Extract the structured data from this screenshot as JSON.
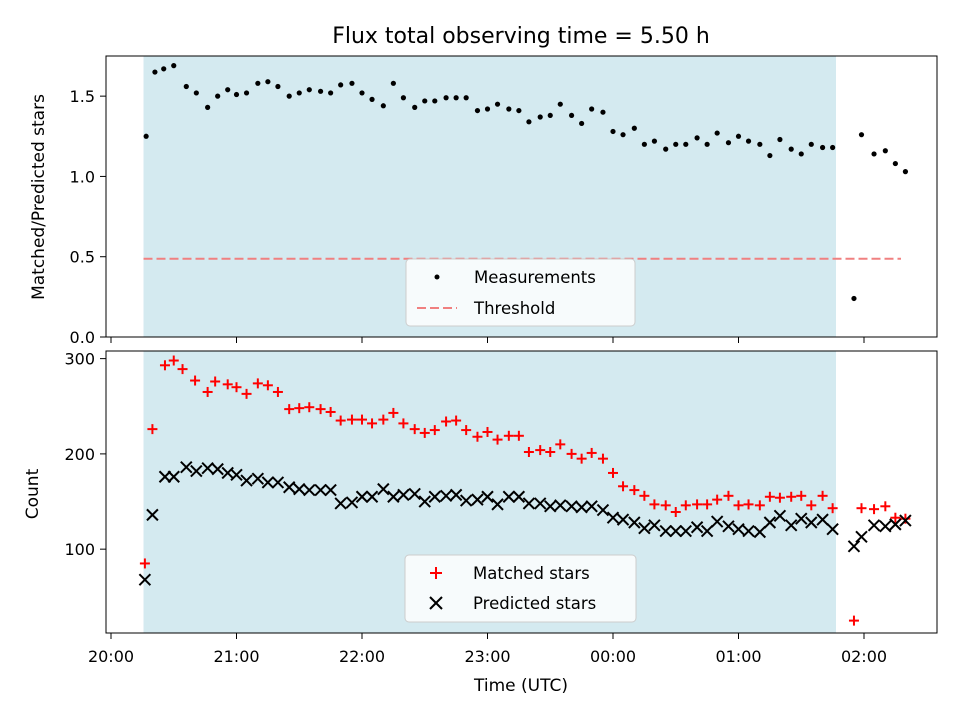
{
  "figure": {
    "title": "Flux total observing time = 5.50 h",
    "xlabel": "Time (UTC)",
    "x_tick_labels": [
      "20:00",
      "21:00",
      "22:00",
      "23:00",
      "00:00",
      "01:00",
      "02:00"
    ],
    "shade_color": "#d4eaf0"
  },
  "chart_data": [
    {
      "type": "scatter",
      "ylabel": "Matched/Predicted stars",
      "ylim": [
        0,
        1.75
      ],
      "yticks": [
        0.0,
        0.5,
        1.0,
        1.5
      ],
      "ytick_labels": [
        "0.0",
        "0.5",
        "1.0",
        "1.5"
      ],
      "xlim": [
        "19:57",
        "02:35"
      ],
      "x_unit": "hours since 20:00 UTC",
      "observing_window": [
        "20:15",
        "01:45"
      ],
      "legend_position": "lower center",
      "threshold": {
        "name": "Threshold",
        "value": 0.5,
        "color": "#f08080",
        "style": "dashed",
        "x_range": [
          "20:15",
          "02:15"
        ]
      },
      "series": [
        {
          "name": "Measurements",
          "color": "#000000",
          "marker": "dot",
          "x": [
            0.28,
            0.35,
            0.42,
            0.5,
            0.6,
            0.68,
            0.77,
            0.85,
            0.93,
            1.0,
            1.08,
            1.17,
            1.25,
            1.33,
            1.42,
            1.5,
            1.58,
            1.67,
            1.75,
            1.83,
            1.92,
            2.0,
            2.08,
            2.17,
            2.25,
            2.33,
            2.42,
            2.5,
            2.58,
            2.67,
            2.75,
            2.83,
            2.92,
            3.0,
            3.08,
            3.17,
            3.25,
            3.33,
            3.42,
            3.5,
            3.58,
            3.67,
            3.75,
            3.83,
            3.92,
            4.0,
            4.08,
            4.17,
            4.25,
            4.33,
            4.42,
            4.5,
            4.58,
            4.67,
            4.75,
            4.83,
            4.92,
            5.0,
            5.08,
            5.17,
            5.25,
            5.33,
            5.42,
            5.5,
            5.58,
            5.67,
            5.75,
            5.92,
            5.98,
            6.08,
            6.17,
            6.25,
            6.33
          ],
          "y": [
            1.25,
            1.65,
            1.67,
            1.69,
            1.56,
            1.52,
            1.43,
            1.5,
            1.54,
            1.51,
            1.52,
            1.58,
            1.59,
            1.56,
            1.5,
            1.52,
            1.54,
            1.53,
            1.52,
            1.57,
            1.58,
            1.52,
            1.48,
            1.44,
            1.58,
            1.49,
            1.43,
            1.47,
            1.47,
            1.49,
            1.49,
            1.49,
            1.41,
            1.42,
            1.45,
            1.42,
            1.41,
            1.34,
            1.37,
            1.38,
            1.45,
            1.38,
            1.33,
            1.42,
            1.4,
            1.28,
            1.26,
            1.3,
            1.2,
            1.22,
            1.17,
            1.2,
            1.2,
            1.24,
            1.2,
            1.27,
            1.21,
            1.25,
            1.22,
            1.2,
            1.13,
            1.23,
            1.17,
            1.14,
            1.2,
            1.18,
            1.18,
            0.24,
            1.26,
            1.14,
            1.16,
            1.08,
            1.03
          ]
        }
      ]
    },
    {
      "type": "scatter",
      "ylabel": "Count",
      "ylim": [
        12,
        308
      ],
      "yticks": [
        100,
        200,
        300
      ],
      "ytick_labels": [
        "100",
        "200",
        "300"
      ],
      "xlim": [
        "19:57",
        "02:35"
      ],
      "x_unit": "hours since 20:00 UTC",
      "observing_window": [
        "20:15",
        "01:45"
      ],
      "legend_position": "lower center",
      "series": [
        {
          "name": "Matched stars",
          "color": "#ff0000",
          "marker": "plus",
          "x": [
            0.27,
            0.33,
            0.43,
            0.5,
            0.57,
            0.67,
            0.77,
            0.83,
            0.93,
            1.0,
            1.08,
            1.17,
            1.25,
            1.33,
            1.42,
            1.5,
            1.58,
            1.67,
            1.75,
            1.83,
            1.92,
            2.0,
            2.08,
            2.17,
            2.25,
            2.33,
            2.42,
            2.5,
            2.58,
            2.67,
            2.75,
            2.83,
            2.92,
            3.0,
            3.08,
            3.17,
            3.25,
            3.33,
            3.42,
            3.5,
            3.58,
            3.67,
            3.75,
            3.83,
            3.92,
            4.0,
            4.08,
            4.17,
            4.25,
            4.33,
            4.42,
            4.5,
            4.58,
            4.67,
            4.75,
            4.83,
            4.92,
            5.0,
            5.08,
            5.17,
            5.25,
            5.33,
            5.42,
            5.5,
            5.58,
            5.67,
            5.75,
            5.92,
            5.98,
            6.08,
            6.17,
            6.25,
            6.33
          ],
          "y": [
            85,
            226,
            293,
            298,
            289,
            277,
            265,
            276,
            273,
            270,
            263,
            274,
            272,
            265,
            247,
            248,
            249,
            247,
            244,
            235,
            236,
            236,
            232,
            236,
            243,
            232,
            226,
            222,
            225,
            234,
            235,
            225,
            218,
            223,
            215,
            219,
            219,
            202,
            204,
            202,
            210,
            200,
            195,
            201,
            195,
            180,
            166,
            162,
            156,
            147,
            146,
            139,
            146,
            147,
            147,
            152,
            156,
            146,
            147,
            146,
            155,
            154,
            155,
            156,
            146,
            156,
            143,
            25,
            143,
            142,
            145,
            133,
            132
          ],
          "x_labels": [
            "20:16",
            "20:20",
            "20:26",
            "20:30",
            "20:34",
            "20:40",
            "20:46",
            "20:50",
            "20:56",
            "21:00",
            "21:05",
            "21:10",
            "21:15",
            "21:20",
            "21:25",
            "21:30",
            "21:35",
            "21:40",
            "21:45",
            "21:50",
            "21:55",
            "22:00",
            "22:05",
            "22:10",
            "22:15",
            "22:20",
            "22:25",
            "22:30",
            "22:35",
            "22:40",
            "22:45",
            "22:50",
            "22:55",
            "23:00",
            "23:05",
            "23:10",
            "23:15",
            "23:20",
            "23:25",
            "23:30",
            "23:35",
            "23:40",
            "23:45",
            "23:50",
            "23:55",
            "00:00",
            "00:05",
            "00:10",
            "00:15",
            "00:20",
            "00:25",
            "00:30",
            "00:35",
            "00:40",
            "00:45",
            "00:50",
            "00:55",
            "01:00",
            "01:05",
            "01:10",
            "01:15",
            "01:20",
            "01:25",
            "01:30",
            "01:35",
            "01:40",
            "01:45",
            "01:55",
            "01:59",
            "02:05",
            "02:10",
            "02:15",
            "02:20"
          ]
        },
        {
          "name": "Predicted stars",
          "color": "#000000",
          "marker": "x",
          "x": [
            0.27,
            0.33,
            0.43,
            0.5,
            0.6,
            0.68,
            0.77,
            0.85,
            0.93,
            1.0,
            1.08,
            1.17,
            1.25,
            1.33,
            1.42,
            1.5,
            1.58,
            1.67,
            1.75,
            1.83,
            1.92,
            2.0,
            2.08,
            2.17,
            2.25,
            2.33,
            2.42,
            2.5,
            2.58,
            2.67,
            2.75,
            2.83,
            2.92,
            3.0,
            3.08,
            3.17,
            3.25,
            3.33,
            3.42,
            3.5,
            3.58,
            3.67,
            3.75,
            3.83,
            3.92,
            4.0,
            4.08,
            4.17,
            4.25,
            4.33,
            4.42,
            4.5,
            4.58,
            4.67,
            4.75,
            4.83,
            4.92,
            5.0,
            5.08,
            5.17,
            5.25,
            5.33,
            5.42,
            5.5,
            5.58,
            5.67,
            5.75,
            5.92,
            5.98,
            6.08,
            6.17,
            6.25,
            6.33
          ],
          "y": [
            68,
            136,
            176,
            176,
            186,
            182,
            185,
            184,
            180,
            178,
            172,
            174,
            170,
            170,
            165,
            163,
            162,
            162,
            162,
            148,
            149,
            155,
            155,
            163,
            155,
            157,
            158,
            150,
            155,
            156,
            157,
            151,
            152,
            155,
            147,
            155,
            155,
            148,
            148,
            145,
            146,
            145,
            144,
            145,
            141,
            133,
            131,
            128,
            122,
            125,
            119,
            119,
            119,
            123,
            119,
            129,
            124,
            121,
            119,
            118,
            128,
            135,
            125,
            132,
            128,
            131,
            121,
            103,
            113,
            125,
            124,
            126,
            130
          ]
        }
      ]
    }
  ]
}
